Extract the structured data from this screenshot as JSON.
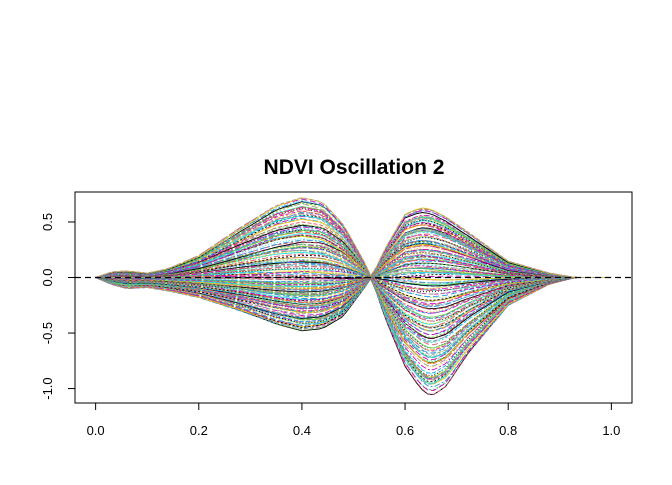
{
  "chart_data": {
    "type": "line",
    "title": "NDVI Oscillation 2",
    "xlabel": "",
    "ylabel": "",
    "xlim": [
      -0.04,
      1.04
    ],
    "ylim": [
      -1.13,
      0.77
    ],
    "x_ticks": [
      0.0,
      0.2,
      0.4,
      0.6,
      0.8,
      1.0
    ],
    "x_tick_labels": [
      "0.0",
      "0.2",
      "0.4",
      "0.6",
      "0.8",
      "1.0"
    ],
    "y_ticks": [
      0.5,
      0.0,
      -0.5,
      -1.0
    ],
    "y_tick_labels": [
      "0.5",
      "0.0",
      "-0.5",
      "-1.0"
    ],
    "grid": false,
    "legend": "none",
    "series_count": 200,
    "series_palette": [
      "#000000",
      "#df536b",
      "#61d04f",
      "#2297e6",
      "#28e2e5",
      "#cd0bbc",
      "#f5c710",
      "#9e9e9e"
    ],
    "envelope": {
      "x": [
        0.0,
        0.03,
        0.06,
        0.1,
        0.14,
        0.2,
        0.28,
        0.35,
        0.4,
        0.44,
        0.48,
        0.52,
        0.535,
        0.56,
        0.6,
        0.63,
        0.65,
        0.68,
        0.72,
        0.8,
        0.88,
        0.93,
        1.0
      ],
      "upper": [
        0.0,
        0.05,
        0.06,
        0.04,
        0.08,
        0.2,
        0.45,
        0.65,
        0.72,
        0.68,
        0.48,
        0.15,
        0.0,
        0.25,
        0.57,
        0.63,
        0.62,
        0.55,
        0.42,
        0.15,
        0.04,
        0.0,
        0.0
      ],
      "lower": [
        0.0,
        -0.06,
        -0.1,
        -0.09,
        -0.12,
        -0.18,
        -0.3,
        -0.42,
        -0.48,
        -0.46,
        -0.35,
        -0.1,
        0.0,
        -0.35,
        -0.8,
        -1.0,
        -1.07,
        -0.98,
        -0.7,
        -0.25,
        -0.06,
        0.0,
        0.0
      ]
    },
    "reference_line": {
      "y": 0.0,
      "style": "dashed",
      "color": "#000000"
    }
  }
}
